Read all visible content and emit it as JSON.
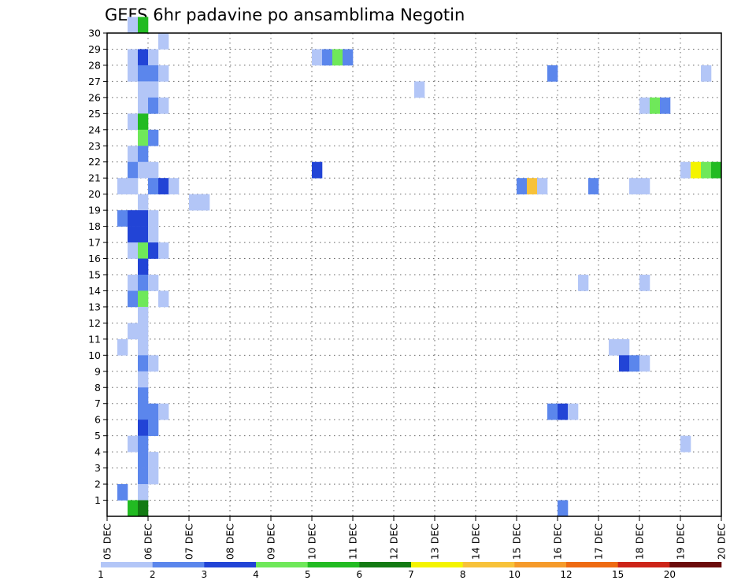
{
  "chart_data": {
    "type": "heatmap",
    "title": "GEFS 6hr padavine po ansamblima Negotin",
    "xlabel": "",
    "ylabel": "",
    "x_ticks": [
      "05 DEC",
      "06 DEC",
      "07 DEC",
      "08 DEC",
      "09 DEC",
      "10 DEC",
      "11 DEC",
      "12 DEC",
      "13 DEC",
      "14 DEC",
      "15 DEC",
      "16 DEC",
      "17 DEC",
      "18 DEC",
      "19 DEC",
      "20 DEC"
    ],
    "y_ticks": [
      "1",
      "2",
      "3",
      "4",
      "5",
      "6",
      "7",
      "8",
      "9",
      "10",
      "11",
      "12",
      "13",
      "14",
      "15",
      "16",
      "17",
      "18",
      "19",
      "20",
      "21",
      "22",
      "23",
      "24",
      "25",
      "26",
      "27",
      "28",
      "29",
      "30"
    ],
    "x_range_steps": [
      0,
      60
    ],
    "steps_per_day": 4,
    "y_range": [
      0,
      30
    ],
    "grid": true,
    "colorbar": {
      "levels": [
        "1",
        "2",
        "3",
        "4",
        "5",
        "6",
        "7",
        "8",
        "10",
        "12",
        "15",
        "20"
      ],
      "colors": [
        "#b3c6f7",
        "#5b86ec",
        "#2244d6",
        "#6fe85a",
        "#22bb22",
        "#137a13",
        "#f4f400",
        "#f7c23a",
        "#f59a2a",
        "#ee6a12",
        "#cc2418",
        "#6b0b0b"
      ]
    },
    "cells": [
      [
        2,
        30,
        1
      ],
      [
        3,
        30,
        5
      ],
      [
        5,
        29,
        1
      ],
      [
        2,
        28,
        1
      ],
      [
        3,
        28,
        3
      ],
      [
        4,
        28,
        1
      ],
      [
        20,
        28,
        1
      ],
      [
        21,
        28,
        2
      ],
      [
        22,
        28,
        4
      ],
      [
        23,
        28,
        2
      ],
      [
        2,
        27,
        1
      ],
      [
        3,
        27,
        2
      ],
      [
        4,
        27,
        2
      ],
      [
        5,
        27,
        1
      ],
      [
        43,
        27,
        2
      ],
      [
        58,
        27,
        1
      ],
      [
        3,
        26,
        1
      ],
      [
        4,
        26,
        1
      ],
      [
        30,
        26,
        1
      ],
      [
        3,
        25,
        1
      ],
      [
        4,
        25,
        2
      ],
      [
        5,
        25,
        1
      ],
      [
        52,
        25,
        1
      ],
      [
        53,
        25,
        4
      ],
      [
        54,
        25,
        2
      ],
      [
        2,
        24,
        1
      ],
      [
        3,
        24,
        5
      ],
      [
        3,
        23,
        4
      ],
      [
        4,
        23,
        2
      ],
      [
        2,
        22,
        1
      ],
      [
        3,
        22,
        2
      ],
      [
        2,
        21,
        2
      ],
      [
        3,
        21,
        1
      ],
      [
        4,
        21,
        1
      ],
      [
        20,
        21,
        3
      ],
      [
        56,
        21,
        1
      ],
      [
        57,
        21,
        7
      ],
      [
        58,
        21,
        4
      ],
      [
        59,
        21,
        5
      ],
      [
        1,
        20,
        1
      ],
      [
        2,
        20,
        1
      ],
      [
        4,
        20,
        2
      ],
      [
        5,
        20,
        3
      ],
      [
        6,
        20,
        1
      ],
      [
        40,
        20,
        2
      ],
      [
        41,
        20,
        8
      ],
      [
        42,
        20,
        1
      ],
      [
        47,
        20,
        2
      ],
      [
        51,
        20,
        1
      ],
      [
        52,
        20,
        1
      ],
      [
        3,
        19,
        1
      ],
      [
        8,
        19,
        1
      ],
      [
        9,
        19,
        1
      ],
      [
        1,
        18,
        2
      ],
      [
        2,
        18,
        3
      ],
      [
        3,
        18,
        3
      ],
      [
        4,
        18,
        1
      ],
      [
        2,
        17,
        3
      ],
      [
        3,
        17,
        3
      ],
      [
        4,
        17,
        1
      ],
      [
        2,
        16,
        1
      ],
      [
        3,
        16,
        4
      ],
      [
        4,
        16,
        3
      ],
      [
        5,
        16,
        1
      ],
      [
        3,
        15,
        3
      ],
      [
        2,
        14,
        1
      ],
      [
        3,
        14,
        2
      ],
      [
        4,
        14,
        1
      ],
      [
        46,
        14,
        1
      ],
      [
        52,
        14,
        1
      ],
      [
        2,
        13,
        2
      ],
      [
        3,
        13,
        4
      ],
      [
        5,
        13,
        1
      ],
      [
        3,
        12,
        1
      ],
      [
        2,
        11,
        1
      ],
      [
        3,
        11,
        1
      ],
      [
        1,
        10,
        1
      ],
      [
        3,
        10,
        1
      ],
      [
        49,
        10,
        1
      ],
      [
        50,
        10,
        1
      ],
      [
        3,
        9,
        2
      ],
      [
        4,
        9,
        1
      ],
      [
        50,
        9,
        3
      ],
      [
        51,
        9,
        2
      ],
      [
        52,
        9,
        1
      ],
      [
        3,
        8,
        1
      ],
      [
        3,
        7,
        2
      ],
      [
        3,
        6,
        2
      ],
      [
        4,
        6,
        2
      ],
      [
        5,
        6,
        1
      ],
      [
        43,
        6,
        2
      ],
      [
        44,
        6,
        3
      ],
      [
        45,
        6,
        1
      ],
      [
        3,
        5,
        3
      ],
      [
        4,
        5,
        2
      ],
      [
        2,
        4,
        1
      ],
      [
        3,
        4,
        2
      ],
      [
        56,
        4,
        1
      ],
      [
        3,
        3,
        2
      ],
      [
        4,
        3,
        1
      ],
      [
        3,
        2,
        2
      ],
      [
        4,
        2,
        1
      ],
      [
        1,
        1,
        2
      ],
      [
        3,
        1,
        1
      ],
      [
        2,
        0,
        5
      ],
      [
        3,
        0,
        6
      ],
      [
        44,
        0,
        2
      ]
    ]
  }
}
